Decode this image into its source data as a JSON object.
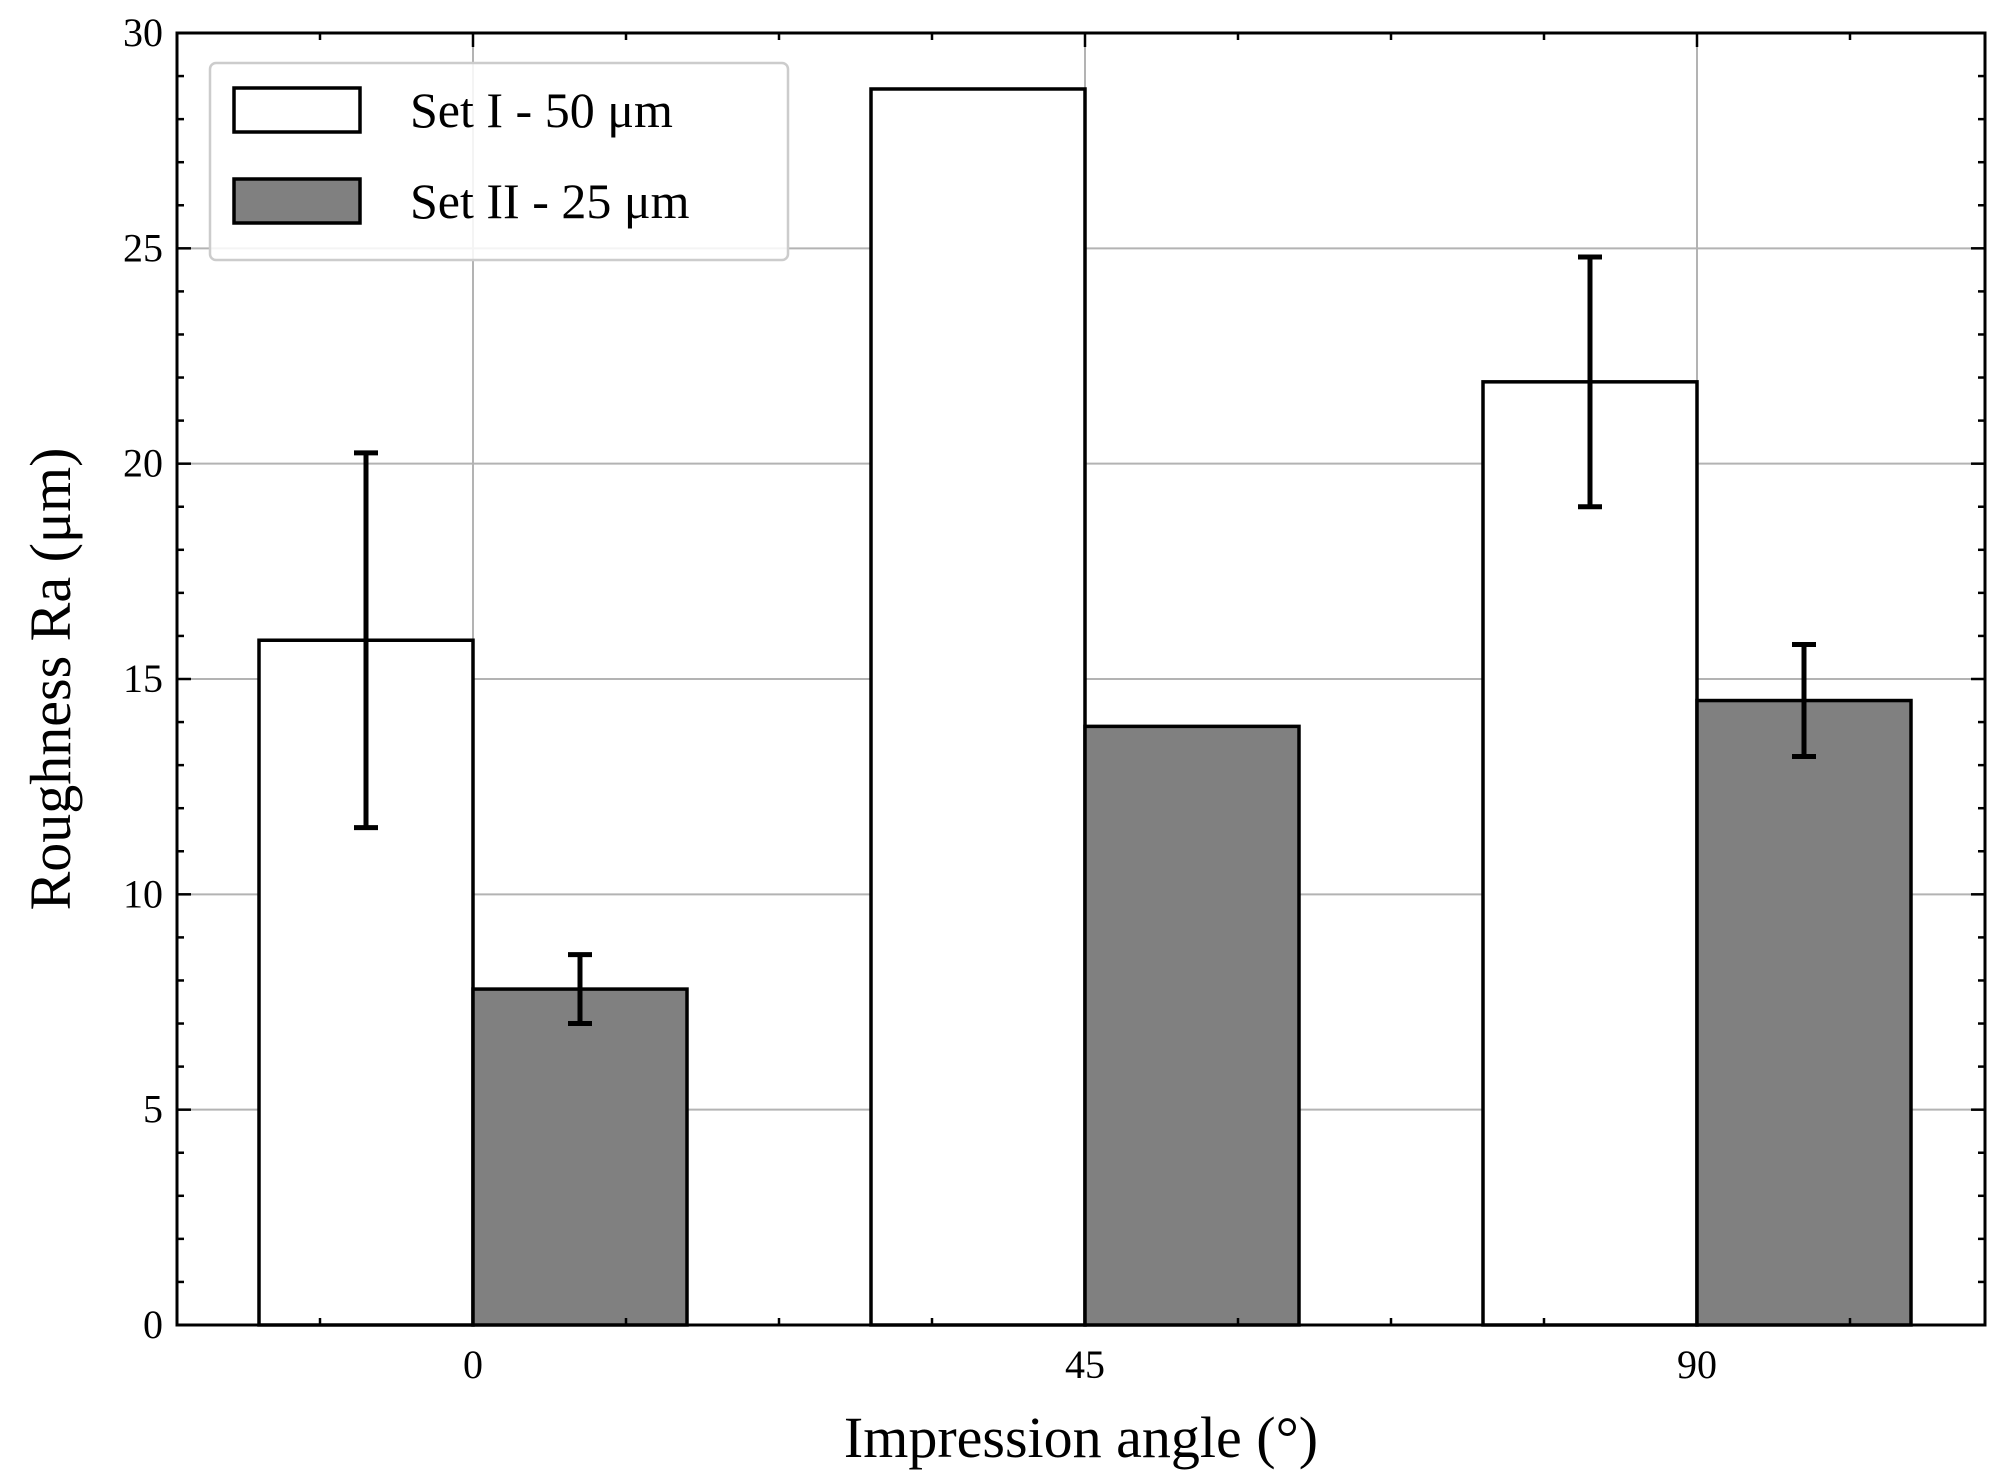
{
  "chart_data": {
    "type": "bar",
    "title": "",
    "xlabel": "Impression angle (°)",
    "ylabel": "Roughness Ra (μm)",
    "categories": [
      "0",
      "45",
      "90"
    ],
    "ylim": [
      0,
      30
    ],
    "yticks": [
      "0",
      "5",
      "10",
      "15",
      "20",
      "25",
      "30"
    ],
    "grid": true,
    "legend_position": "top-left",
    "series": [
      {
        "name": "Set I - 50 μm",
        "color": "#ffffff",
        "values": [
          15.9,
          28.7,
          21.9
        ],
        "errors": [
          4.35,
          null,
          2.9
        ]
      },
      {
        "name": "Set II - 25 μm",
        "color": "#808080",
        "values": [
          7.8,
          13.9,
          14.5
        ],
        "errors": [
          0.8,
          null,
          1.3
        ]
      }
    ]
  }
}
